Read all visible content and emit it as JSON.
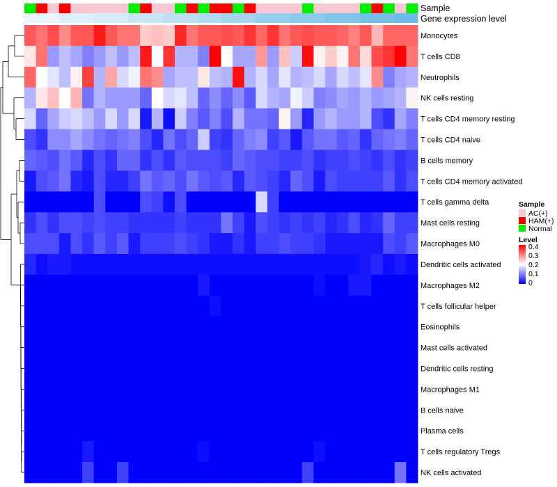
{
  "chart_data": {
    "type": "heatmap",
    "annotation_tracks": [
      "Sample",
      "Gene expression level"
    ],
    "sample_legend": {
      "title": "Sample",
      "entries": [
        {
          "label": "AC(+)",
          "color": "#f8c8d2"
        },
        {
          "label": "HAM(+)",
          "color": "#ff0000"
        },
        {
          "label": "Normal",
          "color": "#00ee00"
        }
      ]
    },
    "level_legend": {
      "title": "Level",
      "ticks": [
        "0.4",
        "0.3",
        "0.2",
        "0.1",
        "0"
      ],
      "colors": [
        "#0000ff",
        "#ffffff",
        "#ff0000"
      ],
      "range": [
        0,
        0.4
      ]
    },
    "sample_groups": [
      "Normal",
      "HAM(+)",
      "AC(+)",
      "HAM(+)",
      "AC(+)",
      "AC(+)",
      "AC(+)",
      "AC(+)",
      "AC(+)",
      "Normal",
      "HAM(+)",
      "AC(+)",
      "AC(+)",
      "Normal",
      "HAM(+)",
      "Normal",
      "HAM(+)",
      "HAM(+)",
      "Normal",
      "HAM(+)",
      "AC(+)",
      "AC(+)",
      "AC(+)",
      "AC(+)",
      "Normal",
      "AC(+)",
      "AC(+)",
      "AC(+)",
      "AC(+)",
      "Normal",
      "HAM(+)",
      "Normal",
      "AC(+)",
      "Normal"
    ],
    "gene_expression_colors": [
      "#eaf4fb",
      "#e0f0fa",
      "#d4ebf8",
      "#c8e6f6",
      "#bce0f4",
      "#b0daf2",
      "#a4d4f0",
      "#98cfee",
      "#8ccaeb",
      "#80c4e9",
      "#76c0e8",
      "#6cbbe6"
    ],
    "rows": [
      "Monocytes",
      "T cells CD8",
      "Neutrophils",
      "NK cells resting",
      "T cells CD4 memory resting",
      "T cells CD4 naive",
      "B cells memory",
      "T cells CD4 memory activated",
      "T cells gamma delta",
      "Mast cells resting",
      "Macrophages M0",
      "Dendritic cells activated",
      "Macrophages M2",
      "T cells follicular helper",
      "Eosinophils",
      "Mast cells activated",
      "Dendritic cells resting",
      "Macrophages M1",
      "B cells naive",
      "Plasma cells",
      "T cells regulatory  Tregs",
      "NK cells activated"
    ],
    "values": [
      [
        0.33,
        0.31,
        0.34,
        0.29,
        0.33,
        0.33,
        0.38,
        0.33,
        0.31,
        0.31,
        0.24,
        0.25,
        0.24,
        0.37,
        0.31,
        0.33,
        0.33,
        0.34,
        0.33,
        0.36,
        0.32,
        0.36,
        0.31,
        0.33,
        0.34,
        0.33,
        0.33,
        0.32,
        0.3,
        0.33,
        0.26,
        0.32,
        0.32,
        0.32
      ],
      [
        0.22,
        0.31,
        0.12,
        0.15,
        0.13,
        0.1,
        0.12,
        0.15,
        0.12,
        0.15,
        0.38,
        0.2,
        0.36,
        0.14,
        0.14,
        0.1,
        0.4,
        0.2,
        0.13,
        0.13,
        0.28,
        0.12,
        0.25,
        0.16,
        0.39,
        0.21,
        0.24,
        0.21,
        0.31,
        0.23,
        0.34,
        0.36,
        0.4,
        0.31
      ],
      [
        0.32,
        0.2,
        0.18,
        0.15,
        0.21,
        0.35,
        0.14,
        0.27,
        0.17,
        0.19,
        0.31,
        0.29,
        0.13,
        0.15,
        0.15,
        0.22,
        0.15,
        0.14,
        0.39,
        0.14,
        0.17,
        0.13,
        0.18,
        0.14,
        0.15,
        0.17,
        0.13,
        0.17,
        0.15,
        0.18,
        0.29,
        0.1,
        0.13,
        0.14
      ],
      [
        0.14,
        0.22,
        0.25,
        0.2,
        0.26,
        0.09,
        0.14,
        0.12,
        0.12,
        0.12,
        0.08,
        0.2,
        0.17,
        0.18,
        0.15,
        0.08,
        0.11,
        0.08,
        0.11,
        0.07,
        0.17,
        0.14,
        0.13,
        0.19,
        0.16,
        0.1,
        0.11,
        0.13,
        0.12,
        0.14,
        0.12,
        0.13,
        0.14,
        0.21
      ],
      [
        0.17,
        0.08,
        0.13,
        0.16,
        0.17,
        0.15,
        0.12,
        0.17,
        0.12,
        0.17,
        0.02,
        0.14,
        0.01,
        0.16,
        0.1,
        0.07,
        0.1,
        0.06,
        0.14,
        0.09,
        0.09,
        0.08,
        0.21,
        0.12,
        0.03,
        0.12,
        0.14,
        0.12,
        0.12,
        0.14,
        0.06,
        0.04,
        0.13,
        0.1
      ],
      [
        0.06,
        0.04,
        0.11,
        0.11,
        0.13,
        0.11,
        0.09,
        0.08,
        0.09,
        0.1,
        0.06,
        0.03,
        0.09,
        0.06,
        0.08,
        0.16,
        0.05,
        0.04,
        0.08,
        0.1,
        0.11,
        0.05,
        0.07,
        0.02,
        0.07,
        0.09,
        0.09,
        0.07,
        0.08,
        0.04,
        0.08,
        0.09,
        0.1,
        0.08
      ],
      [
        0.08,
        0.07,
        0.06,
        0.09,
        0.07,
        0.03,
        0.06,
        0.04,
        0.08,
        0.08,
        0.04,
        0.06,
        0.04,
        0.07,
        0.06,
        0.06,
        0.06,
        0.05,
        0.08,
        0.07,
        0.06,
        0.06,
        0.05,
        0.05,
        0.06,
        0.04,
        0.05,
        0.05,
        0.06,
        0.05,
        0.04,
        0.06,
        0.04,
        0.05
      ],
      [
        0.02,
        0.06,
        0.07,
        0.09,
        0.03,
        0.02,
        0.06,
        0.03,
        0.03,
        0.05,
        0.09,
        0.07,
        0.08,
        0.06,
        0.09,
        0.07,
        0.06,
        0.07,
        0.03,
        0.07,
        0.06,
        0.05,
        0.03,
        0.08,
        0.06,
        0.02,
        0.06,
        0.05,
        0.05,
        0.05,
        0.05,
        0.07,
        0.04,
        0.06
      ],
      [
        0.0,
        0.0,
        0.0,
        0.0,
        0.0,
        0.0,
        0.06,
        0.0,
        0.0,
        0.0,
        0.06,
        0.05,
        0.01,
        0.06,
        0.0,
        0.0,
        0.0,
        0.0,
        0.0,
        0.0,
        0.17,
        0.05,
        0.0,
        0.0,
        0.0,
        0.0,
        0.0,
        0.0,
        0.0,
        0.0,
        0.0,
        0.0,
        0.0,
        0.0
      ],
      [
        0.04,
        0.06,
        0.04,
        0.06,
        0.06,
        0.05,
        0.06,
        0.05,
        0.05,
        0.04,
        0.04,
        0.04,
        0.04,
        0.05,
        0.04,
        0.04,
        0.04,
        0.09,
        0.05,
        0.02,
        0.06,
        0.05,
        0.04,
        0.05,
        0.04,
        0.05,
        0.03,
        0.04,
        0.06,
        0.03,
        0.04,
        0.08,
        0.05,
        0.05
      ],
      [
        0.06,
        0.06,
        0.06,
        0.02,
        0.06,
        0.04,
        0.07,
        0.05,
        0.07,
        0.02,
        0.05,
        0.05,
        0.05,
        0.06,
        0.05,
        0.04,
        0.02,
        0.02,
        0.04,
        0.02,
        0.05,
        0.05,
        0.06,
        0.05,
        0.05,
        0.04,
        0.02,
        0.02,
        0.02,
        0.02,
        0.02,
        0.06,
        0.05,
        0.07
      ],
      [
        0.03,
        0.01,
        0.02,
        0.02,
        0.01,
        0.01,
        0.01,
        0.01,
        0.01,
        0.01,
        0.01,
        0.01,
        0.01,
        0.01,
        0.01,
        0.01,
        0.01,
        0.01,
        0.01,
        0.01,
        0.01,
        0.01,
        0.01,
        0.01,
        0.01,
        0.01,
        0.01,
        0.01,
        0.01,
        0.02,
        0.03,
        0.01,
        0.02,
        0.01
      ],
      [
        0.0,
        0.0,
        0.0,
        0.0,
        0.0,
        0.0,
        0.0,
        0.0,
        0.0,
        0.0,
        0.0,
        0.0,
        0.0,
        0.0,
        0.0,
        0.02,
        0.0,
        0.0,
        0.0,
        0.0,
        0.0,
        0.0,
        0.0,
        0.0,
        0.0,
        0.01,
        0.0,
        0.0,
        0.02,
        0.02,
        0.0,
        0.0,
        0.0,
        0.0
      ],
      [
        0.0,
        0.0,
        0.0,
        0.0,
        0.0,
        0.0,
        0.0,
        0.0,
        0.0,
        0.0,
        0.0,
        0.0,
        0.0,
        0.0,
        0.0,
        0.0,
        0.01,
        0.0,
        0.0,
        0.0,
        0.0,
        0.0,
        0.0,
        0.0,
        0.0,
        0.0,
        0.0,
        0.0,
        0.0,
        0.0,
        0.0,
        0.0,
        0.0,
        0.0
      ],
      [
        0.0,
        0.0,
        0.0,
        0.0,
        0.0,
        0.0,
        0.0,
        0.0,
        0.0,
        0.0,
        0.0,
        0.0,
        0.0,
        0.0,
        0.0,
        0.0,
        0.0,
        0.0,
        0.0,
        0.0,
        0.0,
        0.0,
        0.0,
        0.0,
        0.0,
        0.0,
        0.0,
        0.0,
        0.0,
        0.0,
        0.0,
        0.0,
        0.0,
        0.0
      ],
      [
        0.0,
        0.0,
        0.0,
        0.0,
        0.0,
        0.0,
        0.0,
        0.0,
        0.0,
        0.0,
        0.0,
        0.0,
        0.0,
        0.0,
        0.0,
        0.0,
        0.0,
        0.0,
        0.0,
        0.0,
        0.0,
        0.0,
        0.0,
        0.0,
        0.0,
        0.0,
        0.0,
        0.0,
        0.0,
        0.0,
        0.0,
        0.0,
        0.0,
        0.0
      ],
      [
        0.0,
        0.0,
        0.0,
        0.0,
        0.0,
        0.0,
        0.0,
        0.0,
        0.0,
        0.0,
        0.0,
        0.0,
        0.0,
        0.0,
        0.0,
        0.0,
        0.0,
        0.0,
        0.0,
        0.0,
        0.0,
        0.0,
        0.0,
        0.0,
        0.0,
        0.0,
        0.0,
        0.0,
        0.0,
        0.0,
        0.0,
        0.0,
        0.0,
        0.0
      ],
      [
        0.0,
        0.0,
        0.0,
        0.0,
        0.0,
        0.0,
        0.0,
        0.0,
        0.0,
        0.0,
        0.0,
        0.0,
        0.0,
        0.0,
        0.0,
        0.0,
        0.0,
        0.0,
        0.0,
        0.0,
        0.0,
        0.0,
        0.0,
        0.0,
        0.0,
        0.0,
        0.0,
        0.0,
        0.0,
        0.0,
        0.0,
        0.0,
        0.0,
        0.0
      ],
      [
        0.0,
        0.0,
        0.0,
        0.0,
        0.0,
        0.0,
        0.0,
        0.0,
        0.0,
        0.0,
        0.0,
        0.0,
        0.0,
        0.0,
        0.0,
        0.0,
        0.0,
        0.0,
        0.0,
        0.0,
        0.0,
        0.0,
        0.0,
        0.0,
        0.0,
        0.0,
        0.0,
        0.0,
        0.0,
        0.0,
        0.0,
        0.0,
        0.0,
        0.0
      ],
      [
        0.0,
        0.0,
        0.0,
        0.0,
        0.0,
        0.0,
        0.0,
        0.0,
        0.0,
        0.0,
        0.0,
        0.0,
        0.0,
        0.0,
        0.0,
        0.0,
        0.0,
        0.0,
        0.0,
        0.0,
        0.0,
        0.0,
        0.0,
        0.0,
        0.0,
        0.0,
        0.0,
        0.0,
        0.0,
        0.0,
        0.0,
        0.0,
        0.0,
        0.0
      ],
      [
        0.0,
        0.0,
        0.0,
        0.0,
        0.0,
        0.02,
        0.0,
        0.0,
        0.0,
        0.0,
        0.0,
        0.0,
        0.0,
        0.0,
        0.0,
        0.01,
        0.0,
        0.0,
        0.0,
        0.0,
        0.0,
        0.0,
        0.0,
        0.0,
        0.0,
        0.01,
        0.0,
        0.0,
        0.0,
        0.0,
        0.0,
        0.0,
        0.0,
        0.0
      ],
      [
        0.0,
        0.0,
        0.0,
        0.0,
        0.0,
        0.05,
        0.0,
        0.0,
        0.05,
        0.0,
        0.0,
        0.0,
        0.0,
        0.0,
        0.0,
        0.0,
        0.0,
        0.0,
        0.0,
        0.0,
        0.0,
        0.0,
        0.0,
        0.0,
        0.05,
        0.0,
        0.0,
        0.0,
        0.0,
        0.0,
        0.0,
        0.0,
        0.09,
        0.0
      ]
    ],
    "row_dendrogram": {
      "order_note": "hierarchical clustering of rows",
      "merges": [
        {
          "a": 16,
          "b": 17,
          "h": 0.002
        },
        {
          "a": 15,
          "b": 18,
          "h": 0.003
        },
        {
          "a": 19,
          "b": 20,
          "h": 0.004
        },
        {
          "a": 14,
          "b": 21,
          "h": 0.005
        },
        {
          "a": 13,
          "b": 12,
          "h": 0.006
        },
        {
          "a": 11,
          "b": 10,
          "h": 0.008
        }
      ]
    }
  }
}
